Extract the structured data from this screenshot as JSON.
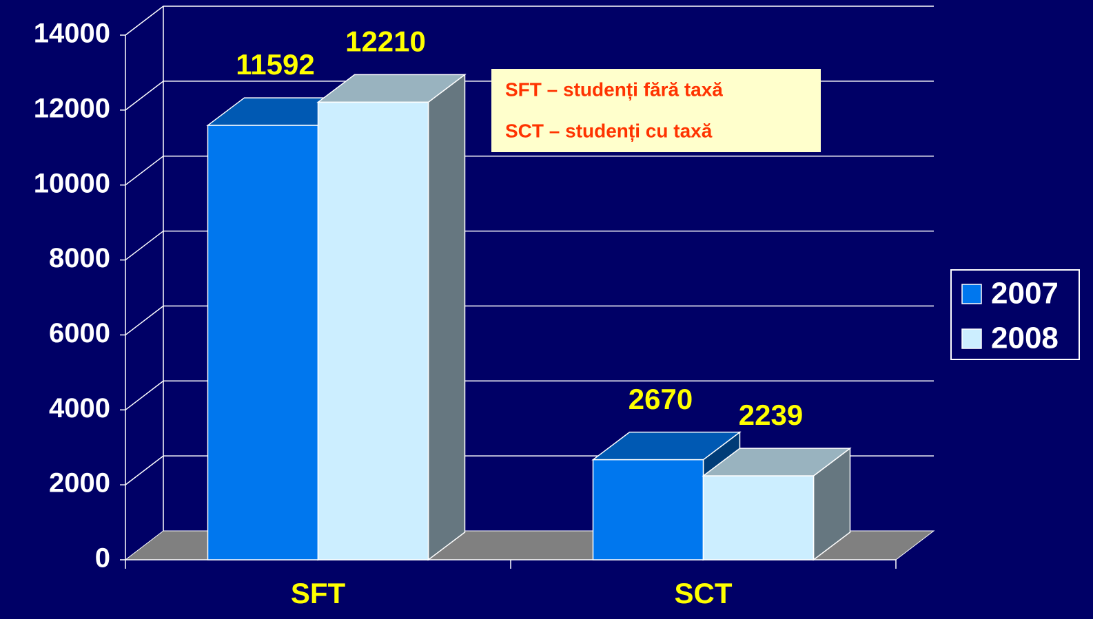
{
  "chart_data": {
    "type": "bar3d",
    "categories": [
      "SFT",
      "SCT"
    ],
    "series": [
      {
        "name": "2007",
        "color": "#0077ee",
        "values": [
          11592,
          2670
        ]
      },
      {
        "name": "2008",
        "color": "#cceeff",
        "values": [
          12210,
          2239
        ]
      }
    ],
    "ylim": [
      0,
      14000
    ],
    "yticks": [
      0,
      2000,
      4000,
      6000,
      8000,
      10000,
      12000,
      14000
    ],
    "grid": true,
    "legend": "right",
    "annotations": [
      "SFT – studenți fără taxă",
      "SCT – studenți cu taxă"
    ]
  }
}
